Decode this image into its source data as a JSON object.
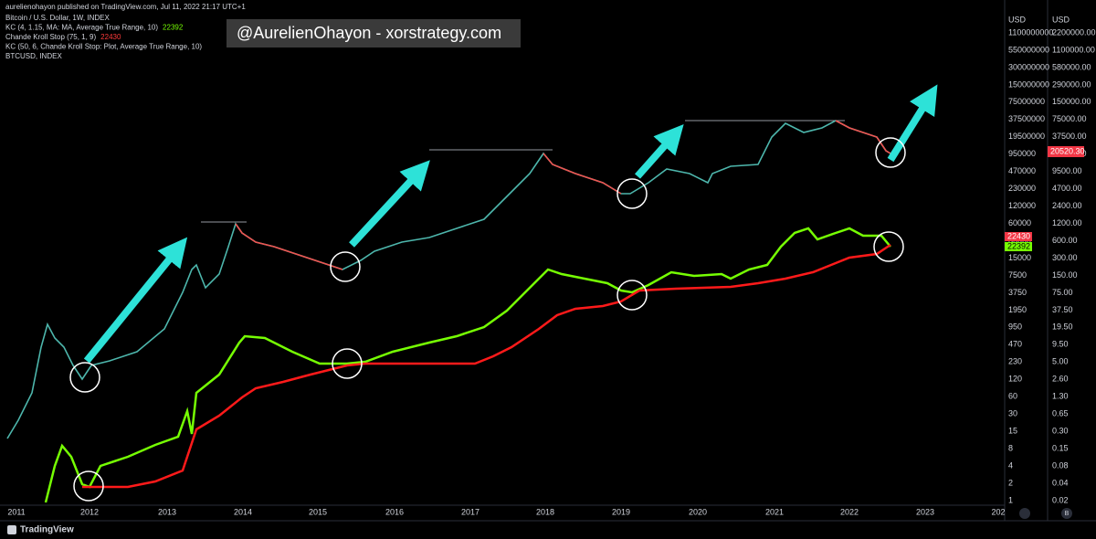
{
  "header": {
    "published": "aurelienohayon published on TradingView.com, Jul 11, 2022 21:17 UTC+1",
    "legend": [
      {
        "text": "Bitcoin / U.S. Dollar, 1W, INDEX"
      },
      {
        "text": "KC (4, 1.15, MA: MA, Average True Range, 10)",
        "value": "22392"
      },
      {
        "text": "Chande Kroll Stop (75, 1, 9)",
        "value": "22430"
      },
      {
        "text": "KC (50, 6, Chande Kroll Stop: Plot, Average True Range, 10)"
      },
      {
        "text": "BTCUSD, INDEX"
      }
    ]
  },
  "watermark": "@AurelienOhayon - xorstrategy.com",
  "left_axis": {
    "unit": "USD",
    "labels": [
      "1100000000",
      "550000000",
      "300000000",
      "150000000",
      "75000000",
      "37500000",
      "19500000",
      "950000",
      "470000",
      "230000",
      "120000",
      "60000",
      "30000",
      "15000",
      "7500",
      "3750",
      "1950",
      "950",
      "470",
      "230",
      "120",
      "60",
      "30",
      "15",
      "8",
      "4",
      "2",
      "1"
    ],
    "tags": [
      "22430",
      "22392"
    ]
  },
  "right_axis": {
    "unit": "USD",
    "labels": [
      "2200000.00",
      "1100000.00",
      "580000.00",
      "290000.00",
      "150000.00",
      "75000.00",
      "37500.00",
      "19000.00",
      "9500.00",
      "4700.00",
      "2400.00",
      "1200.00",
      "600.00",
      "300.00",
      "150.00",
      "75.00",
      "37.50",
      "19.50",
      "9.50",
      "5.00",
      "2.60",
      "1.30",
      "0.65",
      "0.30",
      "0.15",
      "0.08",
      "0.04",
      "0.02"
    ],
    "tag": "20520.30"
  },
  "time_axis": [
    "2011",
    "2012",
    "2013",
    "2014",
    "2015",
    "2016",
    "2017",
    "2018",
    "2019",
    "2020",
    "2021",
    "2022",
    "2023",
    "202"
  ],
  "footer": {
    "brand": "TradingView",
    "buttons": [
      "B"
    ]
  }
}
